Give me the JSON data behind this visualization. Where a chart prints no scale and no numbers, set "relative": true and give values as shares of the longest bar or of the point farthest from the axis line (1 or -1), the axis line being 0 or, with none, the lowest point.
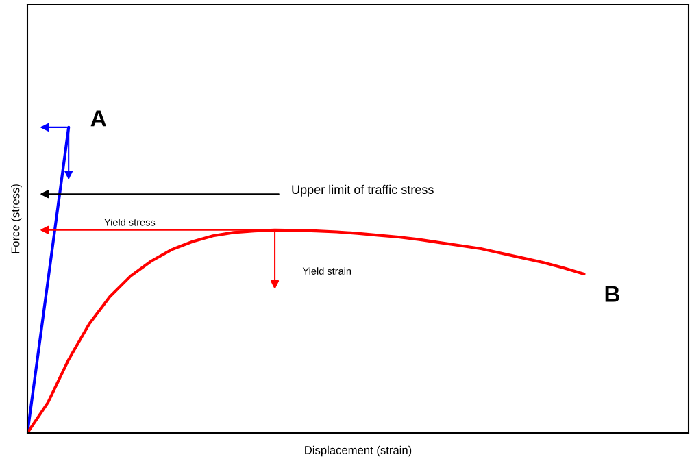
{
  "chart_data": {
    "type": "line",
    "relative": true,
    "xlabel": "Displacement (strain)",
    "ylabel": "Force (stress)",
    "categories": [
      null,
      null,
      null,
      null,
      null,
      null,
      null,
      null,
      null,
      null,
      null,
      null,
      null,
      null,
      null,
      null,
      null,
      null,
      null,
      null,
      null,
      null,
      null,
      null,
      null,
      null,
      null,
      null
    ],
    "series": [
      {
        "color": "#0000ff",
        "values": [
          0,
          0.5,
          1,
          null,
          null,
          null,
          null,
          null,
          null,
          null,
          null,
          null,
          null,
          null,
          null,
          null,
          null,
          null,
          null,
          null,
          null,
          null,
          null,
          null,
          null,
          null,
          null,
          null
        ]
      },
      {
        "color": "#ff0000",
        "values": [
          0,
          0.1,
          0.24,
          0.357,
          0.446,
          0.513,
          0.562,
          0.6,
          0.626,
          0.645,
          0.656,
          0.661,
          0.664,
          0.663,
          0.661,
          0.658,
          0.653,
          0.647,
          0.641,
          0.633,
          0.623,
          0.613,
          0.603,
          0.588,
          0.573,
          0.558,
          0.54,
          0.52
        ]
      }
    ],
    "annotations": [
      "A",
      "B",
      "Upper limit of traffic stress",
      "Yield stress",
      "Yield strain"
    ],
    "grid": false,
    "legend": false,
    "marker": "none",
    "line_style": "solid"
  }
}
